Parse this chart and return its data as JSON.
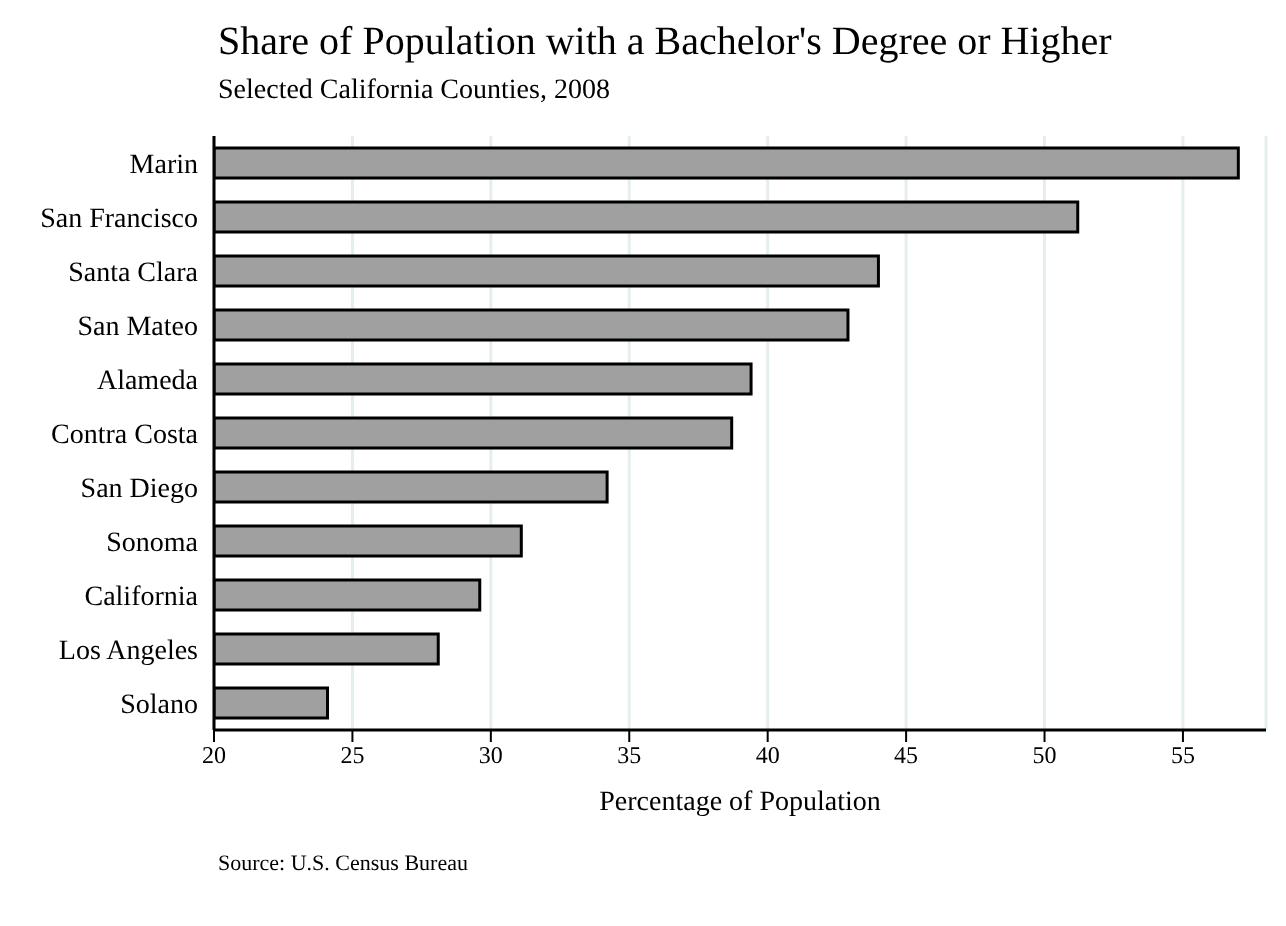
{
  "chart_data": {
    "type": "bar",
    "orientation": "horizontal",
    "title": "Share of Population with a Bachelor's Degree or Higher",
    "subtitle": "Selected California Counties, 2008",
    "xlabel": "Percentage of Population",
    "annotations": [
      "Source: U.S. Census Bureau"
    ],
    "categories": [
      "Marin",
      "San Francisco",
      "Santa Clara",
      "San Mateo",
      "Alameda",
      "Contra Costa",
      "San Diego",
      "Sonoma",
      "California",
      "Los Angeles",
      "Solano"
    ],
    "values": [
      57.0,
      51.2,
      44.0,
      42.9,
      39.4,
      38.7,
      34.2,
      31.1,
      29.6,
      28.1,
      24.1
    ],
    "color": "#a0a0a0",
    "xlim": [
      20,
      58
    ],
    "xticks": [
      20,
      25,
      30,
      35,
      40,
      45,
      50,
      55
    ],
    "grid": "x"
  }
}
